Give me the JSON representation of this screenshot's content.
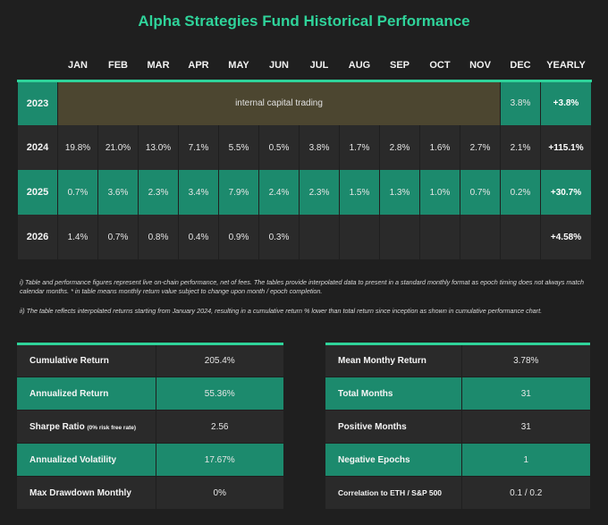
{
  "title": "Alpha Strategies Fund Historical Performance",
  "columns": [
    "",
    "JAN",
    "FEB",
    "MAR",
    "APR",
    "MAY",
    "JUN",
    "JUL",
    "AUG",
    "SEP",
    "OCT",
    "NOV",
    "DEC",
    "YEARLY"
  ],
  "rows": [
    {
      "year": "2023",
      "internal": "internal capital trading",
      "dec": "3.8%",
      "yearly": "+3.8%"
    },
    {
      "year": "2024",
      "months": [
        "19.8%",
        "21.0%",
        "13.0%",
        "7.1%",
        "5.5%",
        "0.5%",
        "3.8%",
        "1.7%",
        "2.8%",
        "1.6%",
        "2.7%",
        "2.1%"
      ],
      "yearly": "+115.1%"
    },
    {
      "year": "2025",
      "months": [
        "0.7%",
        "3.6%",
        "2.3%",
        "3.4%",
        "7.9%",
        "2.4%",
        "2.3%",
        "1.5%",
        "1.3%",
        "1.0%",
        "0.7%",
        "0.2%"
      ],
      "yearly": "+30.7%"
    },
    {
      "year": "2026",
      "months": [
        "1.4%",
        "0.7%",
        "0.8%",
        "0.4%",
        "0.9%",
        "0.3%",
        "",
        "",
        "",
        "",
        "",
        ""
      ],
      "yearly": "+4.58%"
    }
  ],
  "notes": {
    "note1": "i) Table and performance figures represent live on-chain performance, net of fees. The tables provide interpolated data to present in a standard monthly format as epoch timing does not always match calendar months. * in table means monthly return value subject to change upon month / epoch completion.",
    "note2": "ii) The table reflects interpolated returns starting from January 2024, resulting in a cumulative return % lower than total return since inception as shown in cumulative performance chart."
  },
  "stats_left": [
    {
      "label": "Cumulative Return",
      "value": "205.4%"
    },
    {
      "label": "Annualized Return",
      "value": "55.36%"
    },
    {
      "label": "Sharpe Ratio",
      "sublabel": "(0% risk free rate)",
      "value": "2.56"
    },
    {
      "label": "Annualized Volatility",
      "value": "17.67%"
    },
    {
      "label": "Max Drawdown Monthly",
      "value": "0%"
    }
  ],
  "stats_right": [
    {
      "label": "Mean Monthy Return",
      "value": "3.78%"
    },
    {
      "label": "Total Months",
      "value": "31"
    },
    {
      "label": "Positive Months",
      "value": "31"
    },
    {
      "label": "Negative Epochs",
      "value": "1"
    },
    {
      "label": "Correlation to ETH / S&P 500",
      "value": "0.1 / 0.2"
    }
  ]
}
